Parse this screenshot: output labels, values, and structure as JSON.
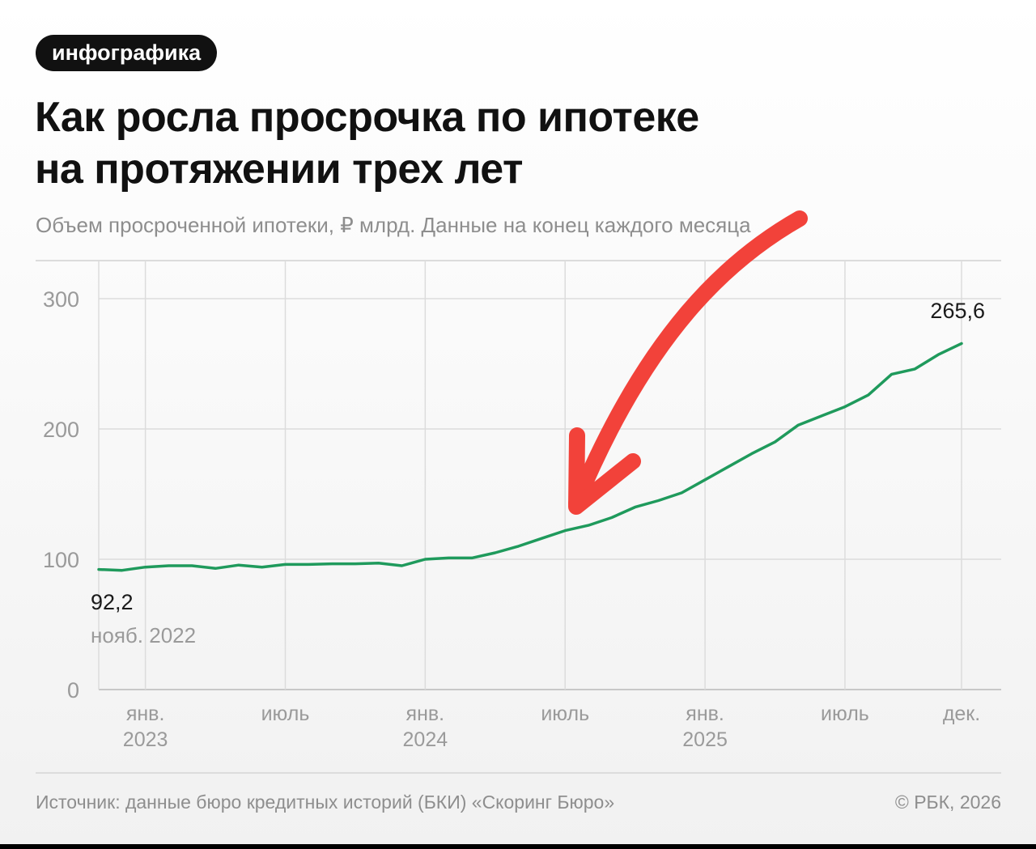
{
  "tag": "инфографика",
  "title_line1": "Как росла просрочка по ипотеке",
  "title_line2": "на протяжении трех лет",
  "subtitle": "Объем просроченной ипотеки, ₽ млрд. Данные на конец каждого месяца",
  "source": "Источник: данные бюро кредитных историй (БКИ) «Скоринг Бюро»",
  "copyright": "© РБК, 2026",
  "colors": {
    "line": "#1f9a5c",
    "arrow": "#f2423a",
    "grid": "#dcdcdc"
  },
  "annotation_arrow": "red-hand-drawn-arrow",
  "chart_data": {
    "type": "line",
    "title": "Как росла просрочка по ипотеке на протяжении трех лет",
    "subtitle": "Объем просроченной ипотеки, ₽ млрд. Данные на конец каждого месяца",
    "ylim": [
      0,
      330
    ],
    "yticks": [
      0,
      100,
      200,
      300
    ],
    "x_start": "2022-11",
    "x_end": "2025-12",
    "xticks": [
      {
        "month": "2023-01",
        "label": "янв.",
        "label2": "2023"
      },
      {
        "month": "2023-07",
        "label": "июль",
        "label2": ""
      },
      {
        "month": "2024-01",
        "label": "янв.",
        "label2": "2024"
      },
      {
        "month": "2024-07",
        "label": "июль",
        "label2": ""
      },
      {
        "month": "2025-01",
        "label": "янв.",
        "label2": "2025"
      },
      {
        "month": "2025-07",
        "label": "июль",
        "label2": ""
      },
      {
        "month": "2025-12",
        "label": "дек.",
        "label2": ""
      }
    ],
    "grid": true,
    "series": [
      {
        "x": [
          "2022-11",
          "2022-12",
          "2023-01",
          "2023-02",
          "2023-03",
          "2023-04",
          "2023-05",
          "2023-06",
          "2023-07",
          "2023-08",
          "2023-09",
          "2023-10",
          "2023-11",
          "2023-12",
          "2024-01",
          "2024-02",
          "2024-03",
          "2024-04",
          "2024-05",
          "2024-06",
          "2024-07",
          "2024-08",
          "2024-09",
          "2024-10",
          "2024-11",
          "2024-12",
          "2025-01",
          "2025-02",
          "2025-03",
          "2025-04",
          "2025-05",
          "2025-06",
          "2025-07",
          "2025-08",
          "2025-09",
          "2025-10",
          "2025-11",
          "2025-12"
        ],
        "values": [
          92.2,
          91.5,
          94,
          95,
          95,
          93,
          95.5,
          94,
          96,
          96,
          96.5,
          96.5,
          97,
          95,
          100,
          101,
          101,
          105,
          110,
          116,
          122,
          126,
          132,
          140,
          145,
          151,
          161,
          171,
          181,
          190,
          203,
          210,
          217,
          226,
          242,
          246,
          257,
          265.6
        ]
      }
    ],
    "annotations": [
      {
        "value_label": "92,2",
        "date_label": "нояб. 2022"
      },
      {
        "value_label": "265,6"
      }
    ]
  }
}
